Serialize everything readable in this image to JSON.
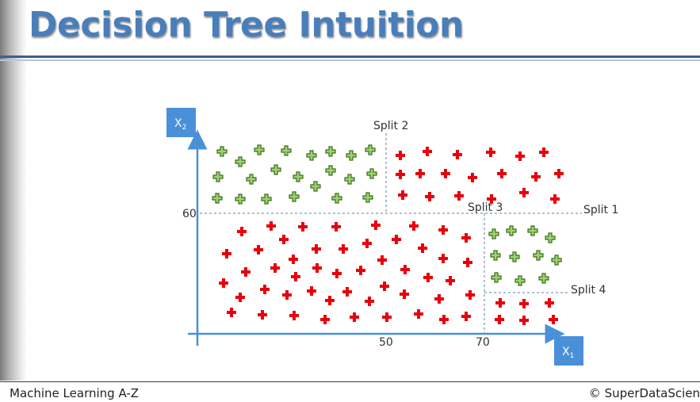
{
  "slide": {
    "title": "Decision Tree Intuition",
    "footer_left": "Machine Learning A-Z",
    "footer_right": "© SuperDataScien"
  },
  "diagram": {
    "x_axis_label": "X",
    "x_axis_sub": "1",
    "y_axis_label": "X",
    "y_axis_sub": "2",
    "tick_50": "50",
    "tick_70": "70",
    "tick_60": "60",
    "split1": "Split 1",
    "split2": "Split 2",
    "split3": "Split 3",
    "split4": "Split 4",
    "colors": {
      "green_fill": "#9bd46e",
      "green_stroke": "#3e6b1c",
      "red": "#e8000b",
      "axis": "#4a90d9",
      "axis_box": "#4a90d9",
      "split_line": "#7f9ab8"
    }
  }
}
